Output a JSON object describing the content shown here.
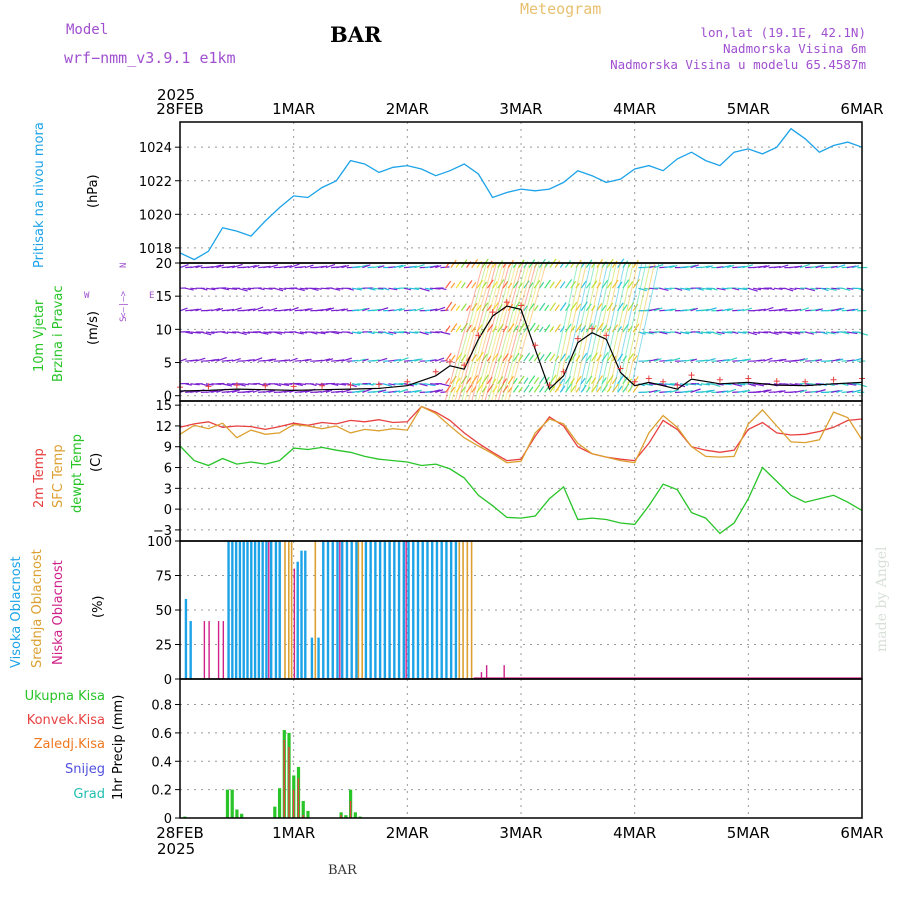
{
  "header": {
    "model_label": "Model",
    "model_name": "wrf−nmm_v3.9.1  e1km",
    "station": "BAR",
    "product": "Meteogram",
    "location_lines": [
      "lon,lat (19.1E, 42.1N)",
      "Nadmorska Visina 6m",
      "Nadmorska Visina u modelu 65.4587m"
    ],
    "footer_station": "BAR",
    "credit": "made by Angel"
  },
  "colors": {
    "pressure": "#1ca3e8",
    "t2m": "#e84040",
    "sfc": "#dca030",
    "dew": "#28c428",
    "high_cloud": "#1ca3e8",
    "mid_cloud": "#dca030",
    "low_cloud": "#d0208a",
    "total_precip": "#28c428",
    "conv_precip": "#e84040",
    "frz_precip": "#f07820",
    "snow": "#5050e0",
    "hail": "#20c0b0",
    "wind_low": "#7a20d0"
  },
  "time_axis": {
    "top_year": "2025",
    "bottom_year": "2025",
    "labels": [
      "28FEB",
      "1MAR",
      "2MAR",
      "3MAR",
      "4MAR",
      "5MAR",
      "6MAR"
    ]
  },
  "chart_data": [
    {
      "type": "line",
      "ylabel_title": "Pritisak na nivou mora",
      "ylabel": "(hPa)",
      "yticks": [
        "1018",
        "1020",
        "1022",
        "1024"
      ],
      "ylim": [
        1017.1,
        1025.5
      ],
      "x_hours": [
        0,
        3,
        6,
        9,
        12,
        15,
        18,
        21,
        24,
        27,
        30,
        33,
        36,
        39,
        42,
        45,
        48,
        51,
        54,
        57,
        60,
        63,
        66,
        69,
        72,
        75,
        78,
        81,
        84,
        87,
        90,
        93,
        96,
        99,
        102,
        105,
        108,
        111,
        114,
        117,
        120,
        123,
        126,
        129,
        132,
        135,
        138,
        141,
        144
      ],
      "series": [
        {
          "values": [
            1017.7,
            1017.3,
            1017.8,
            1019.2,
            1019.0,
            1018.7,
            1019.6,
            1020.4,
            1021.1,
            1021.0,
            1021.6,
            1022.0,
            1023.2,
            1023.0,
            1022.5,
            1022.8,
            1022.9,
            1022.7,
            1022.3,
            1022.6,
            1023.0,
            1022.4,
            1021.0,
            1021.3,
            1021.5,
            1021.4,
            1021.5,
            1021.9,
            1022.6,
            1022.3,
            1021.9,
            1022.1,
            1022.7,
            1022.9,
            1022.6,
            1023.3,
            1023.7,
            1023.2,
            1022.9,
            1023.7,
            1023.9,
            1023.6,
            1024.0,
            1025.1,
            1024.5,
            1023.7,
            1024.1,
            1024.3,
            1024.0
          ]
        }
      ]
    },
    {
      "type": "line",
      "ylabel_title1": "10m Vjetar",
      "ylabel_title2": "Brzina i Pravac",
      "ylabel": "(m/s)",
      "compass": [
        "W",
        "<—|—>",
        "E",
        "N",
        "S"
      ],
      "yticks": [
        "0",
        "5",
        "10",
        "15",
        "20"
      ],
      "ylim": [
        -0.8,
        20
      ],
      "x_hours": [
        0,
        6,
        12,
        18,
        24,
        30,
        36,
        42,
        48,
        54,
        57,
        60,
        63,
        66,
        69,
        72,
        75,
        78,
        81,
        84,
        87,
        90,
        93,
        96,
        99,
        102,
        105,
        108,
        114,
        120,
        126,
        132,
        138,
        144
      ],
      "series": [
        {
          "name": "speed",
          "values": [
            0.7,
            0.8,
            1.0,
            0.9,
            0.8,
            0.9,
            1.0,
            1.1,
            1.5,
            3.0,
            4.5,
            4.0,
            8.5,
            12.0,
            13.5,
            13.0,
            7.0,
            1.0,
            3.0,
            8.0,
            9.5,
            8.5,
            3.5,
            1.5,
            2.0,
            1.5,
            1.0,
            2.5,
            1.8,
            2.0,
            1.6,
            1.5,
            1.8,
            2.0
          ]
        }
      ]
    },
    {
      "type": "line",
      "ylabel_t2m": "2m Temp",
      "ylabel_sfc": "SFC Temp",
      "ylabel_dew": "dewpt Temp",
      "ylabel": "(C)",
      "yticks": [
        "−3",
        "0",
        "3",
        "6",
        "9",
        "12",
        "15"
      ],
      "ylim": [
        -4.6,
        15.6
      ],
      "x_hours": [
        0,
        3,
        6,
        9,
        12,
        15,
        18,
        21,
        24,
        27,
        30,
        33,
        36,
        39,
        42,
        45,
        48,
        51,
        54,
        57,
        60,
        63,
        66,
        69,
        72,
        75,
        78,
        81,
        84,
        87,
        90,
        93,
        96,
        99,
        102,
        105,
        108,
        111,
        114,
        117,
        120,
        123,
        126,
        129,
        132,
        135,
        138,
        141,
        144
      ],
      "series": [
        {
          "name": "2m Temp",
          "values": [
            11.8,
            12.3,
            12.6,
            11.8,
            12.0,
            11.9,
            11.5,
            11.9,
            12.4,
            12.1,
            12.5,
            12.3,
            12.8,
            12.6,
            12.9,
            12.5,
            12.6,
            14.8,
            14.0,
            12.8,
            11.0,
            9.5,
            8.2,
            7.0,
            7.2,
            10.5,
            13.3,
            12.0,
            9.0,
            8.0,
            7.5,
            7.2,
            7.0,
            9.5,
            12.8,
            11.5,
            9.0,
            8.5,
            8.2,
            8.5,
            11.5,
            12.5,
            11.0,
            10.7,
            10.8,
            11.2,
            11.8,
            12.8,
            13.0
          ]
        },
        {
          "name": "SFC Temp",
          "values": [
            10.8,
            12.1,
            11.6,
            12.4,
            10.3,
            11.4,
            10.8,
            11.0,
            12.2,
            12.0,
            11.6,
            12.0,
            11.0,
            11.5,
            11.3,
            11.6,
            11.4,
            14.8,
            13.8,
            12.0,
            10.3,
            9.1,
            8.0,
            6.7,
            6.9,
            11.0,
            13.0,
            12.3,
            9.5,
            8.0,
            7.5,
            7.0,
            6.7,
            11.0,
            13.5,
            11.8,
            9.0,
            7.6,
            7.5,
            7.6,
            12.3,
            14.3,
            12.0,
            9.7,
            9.6,
            10.0,
            14.0,
            13.2,
            10.0
          ]
        },
        {
          "name": "dewpt Temp",
          "values": [
            9.1,
            7.0,
            6.3,
            7.3,
            6.5,
            6.8,
            6.5,
            7.0,
            8.8,
            8.6,
            8.9,
            8.5,
            8.2,
            7.6,
            7.2,
            7.0,
            6.8,
            6.3,
            6.5,
            5.8,
            4.5,
            2.0,
            0.5,
            -1.2,
            -1.3,
            -1.0,
            1.5,
            3.2,
            -1.5,
            -1.3,
            -1.5,
            -2.0,
            -2.2,
            0.5,
            3.6,
            2.8,
            -0.5,
            -1.3,
            -3.5,
            -2.0,
            1.5,
            6.0,
            4.0,
            2.0,
            1.0,
            1.5,
            2.0,
            1.0,
            -0.2
          ]
        }
      ]
    },
    {
      "type": "bar",
      "ylabel_high": "Visoka Oblacnost",
      "ylabel_mid": "Srednja Oblacnost",
      "ylabel_low": "Niska Oblacnost",
      "ylabel": "(%)",
      "yticks": [
        "0",
        "25",
        "50",
        "75",
        "100"
      ],
      "ylim": [
        0,
        100
      ],
      "high_bars": [
        [
          1,
          58
        ],
        [
          2,
          42
        ],
        [
          10,
          100
        ],
        [
          10.8,
          100
        ],
        [
          11.6,
          100
        ],
        [
          12.4,
          100
        ],
        [
          13.2,
          100
        ],
        [
          14,
          100
        ],
        [
          14.8,
          100
        ],
        [
          15.6,
          100
        ],
        [
          16.4,
          100
        ],
        [
          17.2,
          100
        ],
        [
          18,
          100
        ],
        [
          19,
          100
        ],
        [
          20,
          100
        ],
        [
          20.8,
          100
        ],
        [
          24.6,
          85
        ],
        [
          25.4,
          93
        ],
        [
          26.2,
          93
        ],
        [
          27.6,
          30
        ],
        [
          29,
          30
        ],
        [
          30,
          100
        ],
        [
          31,
          100
        ],
        [
          32,
          100
        ],
        [
          33,
          100
        ],
        [
          34,
          100
        ],
        [
          35,
          100
        ],
        [
          36,
          100
        ],
        [
          37,
          100
        ],
        [
          39,
          100
        ],
        [
          40,
          100
        ],
        [
          41,
          100
        ],
        [
          42,
          100
        ],
        [
          43,
          100
        ],
        [
          44,
          100
        ],
        [
          45,
          100
        ],
        [
          46,
          100
        ],
        [
          47,
          100
        ],
        [
          48,
          100
        ],
        [
          49,
          100
        ],
        [
          50,
          100
        ],
        [
          51,
          100
        ],
        [
          52,
          100
        ],
        [
          53,
          100
        ],
        [
          54,
          100
        ],
        [
          55,
          100
        ],
        [
          56,
          100
        ],
        [
          57,
          100
        ],
        [
          58,
          100
        ]
      ],
      "mid_bars": [
        [
          22,
          100
        ],
        [
          22.8,
          100
        ],
        [
          23.4,
          100
        ],
        [
          28.4,
          100
        ],
        [
          37.5,
          100
        ],
        [
          38.3,
          100
        ],
        [
          58.8,
          100
        ],
        [
          59.6,
          100
        ],
        [
          60.5,
          100
        ],
        [
          61.4,
          100
        ]
      ],
      "low_bars": [
        [
          5,
          42
        ],
        [
          6,
          42
        ],
        [
          8,
          42
        ],
        [
          9,
          42
        ],
        [
          18.6,
          100
        ],
        [
          24,
          80
        ],
        [
          33.6,
          100
        ],
        [
          47.6,
          100
        ],
        [
          63.5,
          5
        ],
        [
          64.6,
          10
        ],
        [
          68.3,
          10
        ]
      ]
    },
    {
      "type": "bar",
      "legend": [
        "Ukupna Kisa",
        "Konvek.Kisa",
        "Zaledj.Kisa",
        "Snijeg",
        "Grad"
      ],
      "ylabel": "1hr Precip (mm)",
      "yticks": [
        "0",
        "0.2",
        "0.4",
        "0.6",
        "0.8"
      ],
      "ylim": [
        0,
        0.98
      ],
      "total_bars": [
        [
          1,
          0.01
        ],
        [
          10,
          0.2
        ],
        [
          11,
          0.2
        ],
        [
          12,
          0.06
        ],
        [
          13,
          0.03
        ],
        [
          20,
          0.08
        ],
        [
          21,
          0.21
        ],
        [
          22,
          0.62
        ],
        [
          23,
          0.6
        ],
        [
          24,
          0.3
        ],
        [
          25,
          0.36
        ],
        [
          26,
          0.12
        ],
        [
          27,
          0.05
        ],
        [
          34,
          0.04
        ],
        [
          35,
          0.02
        ],
        [
          36,
          0.2
        ],
        [
          37,
          0.04
        ],
        [
          38,
          0.01
        ]
      ],
      "conv_bars": [
        [
          22,
          0.55
        ],
        [
          23,
          0.5
        ],
        [
          24,
          0.2
        ],
        [
          25,
          0.28
        ],
        [
          26,
          0.02
        ],
        [
          36,
          0.12
        ],
        [
          34,
          0.02
        ]
      ]
    }
  ]
}
